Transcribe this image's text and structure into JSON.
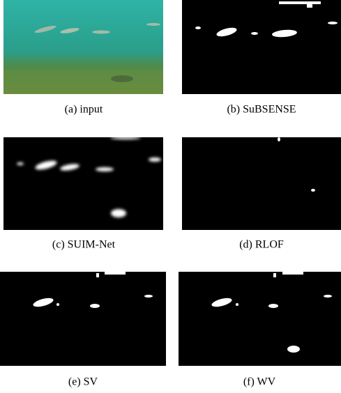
{
  "figure": {
    "panels": [
      {
        "caption": "(a) input"
      },
      {
        "caption": "(b) SuBSENSE"
      },
      {
        "caption": "(c) SUIM-Net"
      },
      {
        "caption": "(d) RLOF"
      },
      {
        "caption": "(e) SV"
      },
      {
        "caption": "(f) WV"
      }
    ]
  }
}
